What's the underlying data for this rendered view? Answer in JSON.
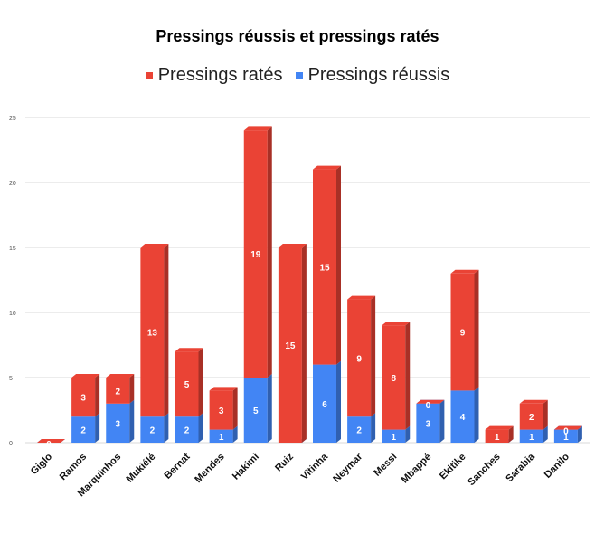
{
  "chart_data": {
    "type": "bar",
    "stacked": true,
    "three_d": true,
    "title": "Pressings réussis et pressings ratés",
    "legend_position": "top",
    "categories": [
      "Giglo",
      "Ramos",
      "Marquinhos",
      "Mukiélé",
      "Bernat",
      "Mendes",
      "Hakimi",
      "Ruiz",
      "Vitinha",
      "Neymar",
      "Messi",
      "Mbappé",
      "Ekitike",
      "Sanches",
      "Sarabia",
      "Danilo"
    ],
    "series": [
      {
        "name": "Pressings réussis",
        "color": "#4285f4",
        "values": [
          0,
          2,
          3,
          2,
          2,
          1,
          5,
          0,
          6,
          2,
          1,
          3,
          4,
          0,
          1,
          1
        ]
      },
      {
        "name": "Pressings ratés",
        "color": "#ea4335",
        "values": [
          0,
          3,
          2,
          13,
          5,
          3,
          19,
          15,
          15,
          9,
          8,
          0,
          9,
          1,
          2,
          0
        ]
      }
    ],
    "legend_order": [
      "Pressings ratés",
      "Pressings réussis"
    ],
    "y_ticks": [
      0,
      5,
      10,
      15,
      20,
      25
    ],
    "ylim": [
      0,
      25
    ],
    "grid": true
  }
}
